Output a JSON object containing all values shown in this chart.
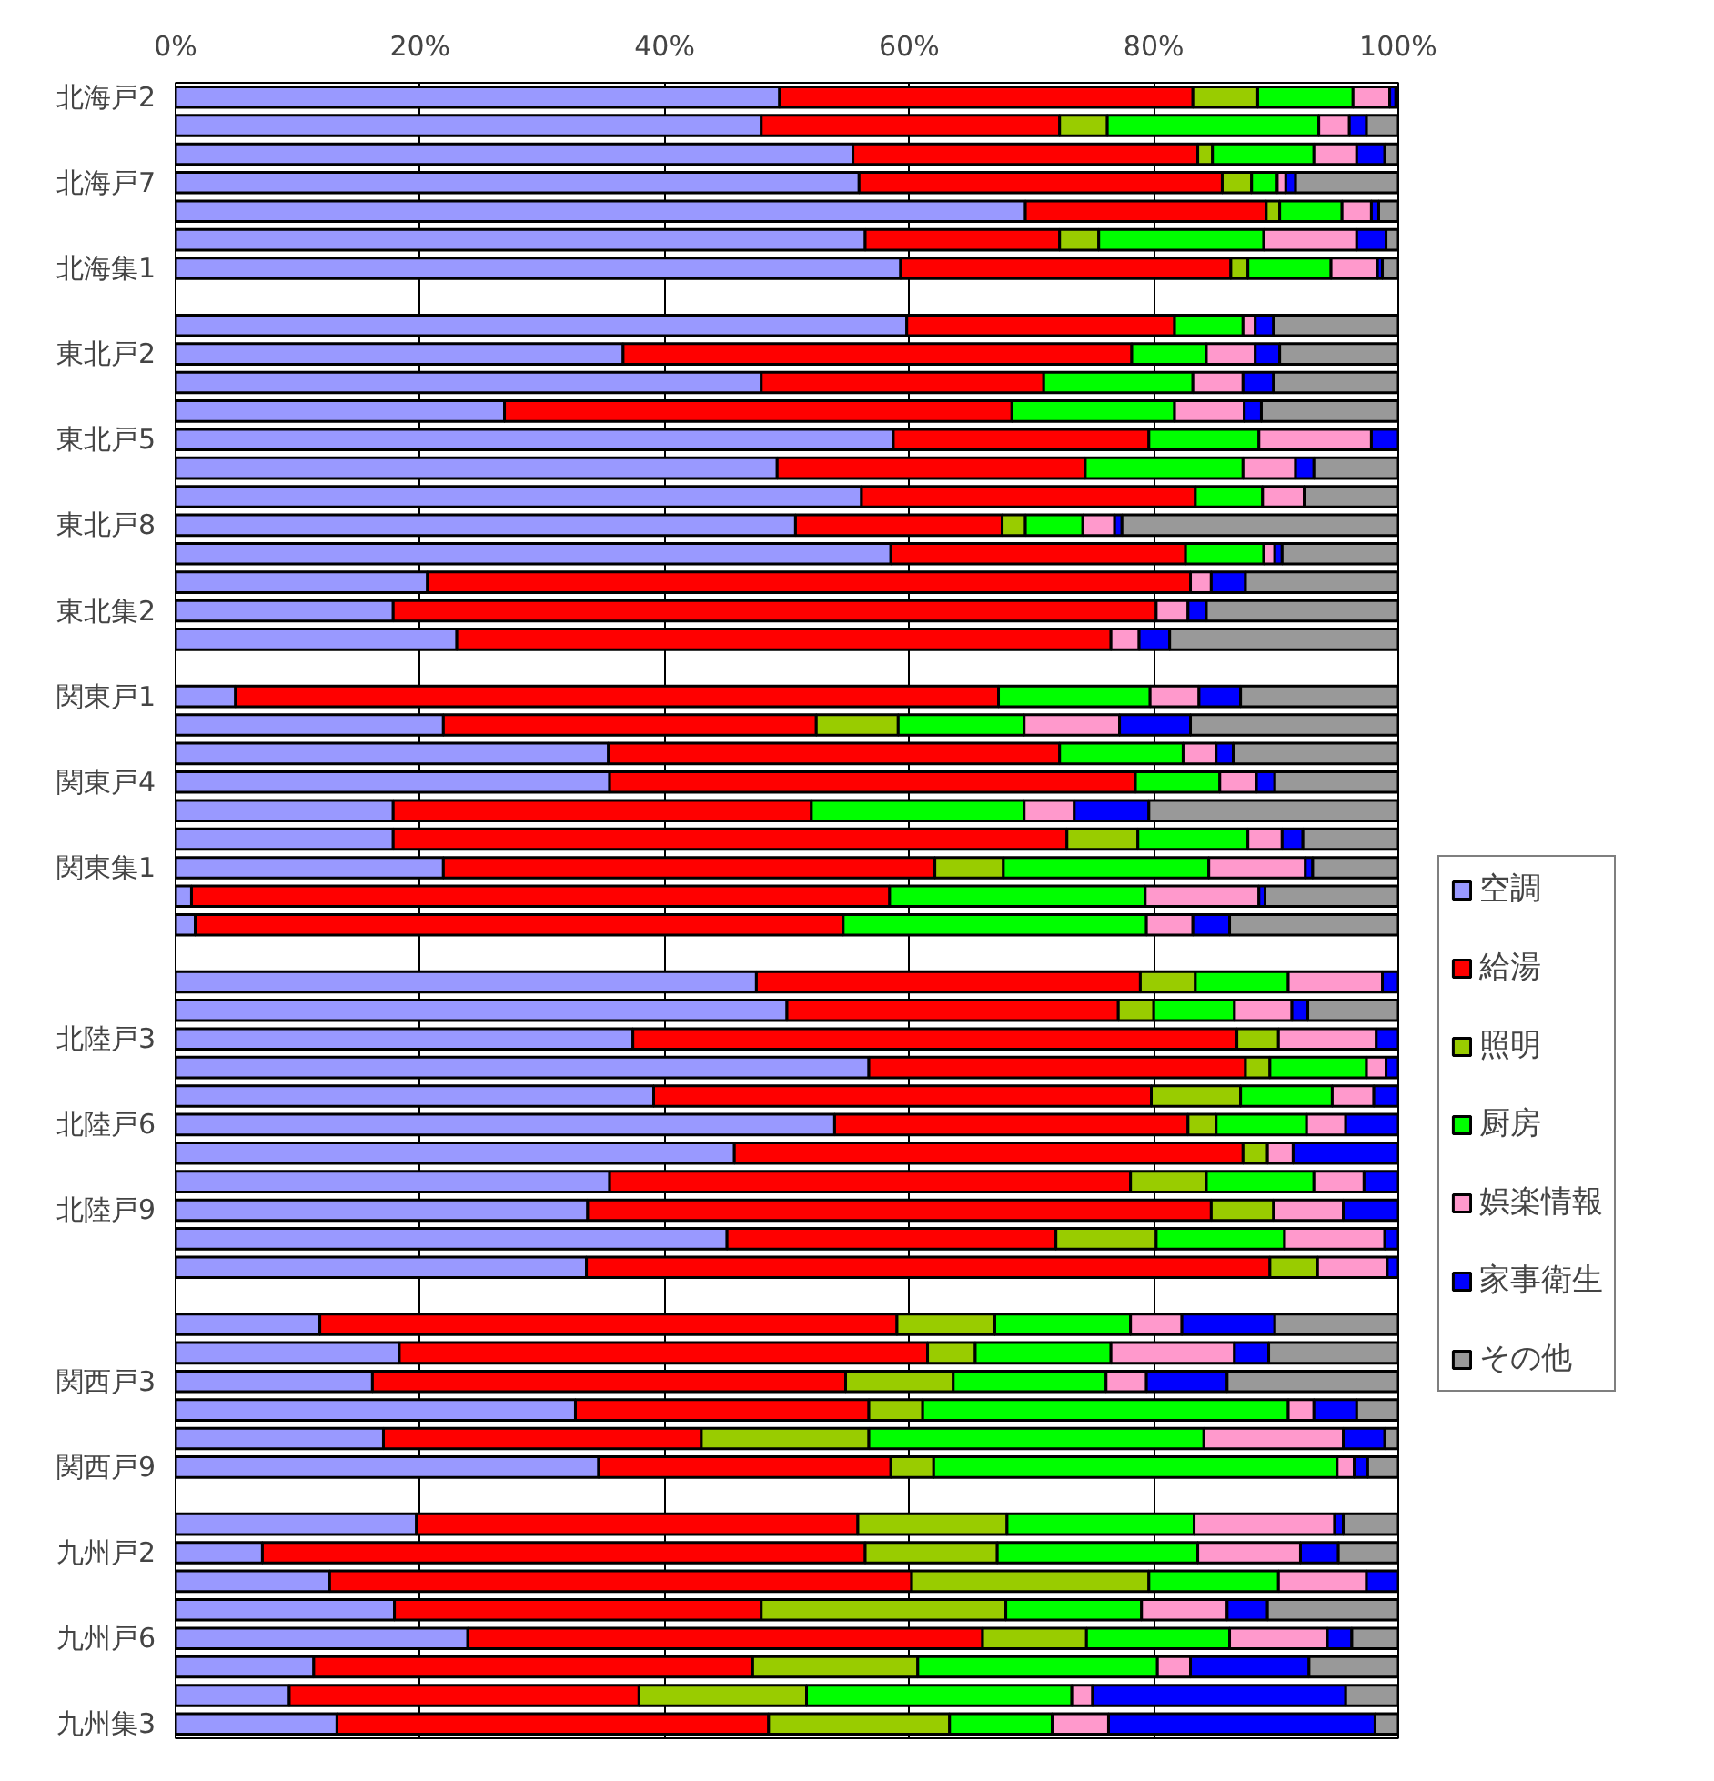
{
  "chart_data": {
    "type": "bar",
    "orientation": "horizontal",
    "stacked": true,
    "categories": [
      "北海戸2",
      null,
      null,
      "北海戸7",
      null,
      null,
      "北海集1",
      null,
      null,
      "東北戸2",
      null,
      null,
      "東北戸5",
      null,
      null,
      "東北戸8",
      null,
      null,
      "東北集2",
      null,
      null,
      "関東戸1",
      null,
      null,
      "関東戸4",
      null,
      null,
      "関東集1",
      null,
      null,
      null,
      null,
      null,
      "北陸戸3",
      null,
      null,
      "北陸戸6",
      null,
      null,
      "北陸戸9",
      null,
      null,
      null,
      null,
      null,
      "関西戸3",
      null,
      null,
      "関西戸9",
      null,
      null,
      "九州戸2",
      null,
      null,
      "九州戸6",
      null,
      null,
      "九州集3"
    ],
    "series": [
      {
        "name": "空調",
        "color": "#9999ff",
        "values": [
          49.4,
          47.9,
          55.4,
          55.9,
          69.5,
          56.4,
          59.3,
          null,
          59.8,
          36.6,
          47.9,
          26.9,
          58.7,
          49.2,
          56.1,
          50.7,
          58.5,
          20.6,
          17.8,
          23.0,
          null,
          4.9,
          21.9,
          35.4,
          35.5,
          17.8,
          17.8,
          21.9,
          1.3,
          1.6,
          null,
          47.5,
          50.0,
          37.4,
          56.7,
          39.1,
          53.9,
          45.7,
          35.5,
          33.7,
          45.1,
          33.6,
          null,
          11.8,
          18.3,
          16.1,
          32.7,
          17.0,
          34.6,
          null,
          19.7,
          7.1,
          12.6,
          17.9,
          23.9,
          11.3,
          9.3,
          13.2
        ]
      },
      {
        "name": "給湯",
        "color": "#ff0000",
        "values": [
          33.8,
          24.4,
          28.2,
          29.7,
          19.7,
          15.9,
          27.0,
          null,
          21.9,
          41.6,
          23.1,
          41.5,
          20.9,
          25.2,
          27.3,
          16.9,
          24.1,
          62.4,
          62.4,
          53.5,
          null,
          62.4,
          30.5,
          36.9,
          43.0,
          34.2,
          55.1,
          40.2,
          57.1,
          53.0,
          null,
          31.4,
          27.1,
          49.4,
          30.8,
          40.7,
          28.9,
          41.6,
          42.6,
          51.0,
          26.9,
          55.9,
          null,
          47.2,
          43.2,
          38.7,
          24.0,
          26.0,
          23.9,
          null,
          36.1,
          49.3,
          47.6,
          30.0,
          42.1,
          35.9,
          28.6,
          35.3
        ]
      },
      {
        "name": "照明",
        "color": "#99cc00",
        "values": [
          5.3,
          3.9,
          1.2,
          2.4,
          1.1,
          3.2,
          1.4,
          null,
          null,
          null,
          null,
          null,
          null,
          null,
          null,
          1.9,
          null,
          null,
          null,
          null,
          null,
          null,
          6.7,
          null,
          null,
          null,
          5.8,
          5.6,
          null,
          null,
          null,
          4.5,
          2.9,
          3.4,
          2.0,
          7.3,
          2.3,
          2.0,
          6.2,
          5.1,
          8.2,
          3.9,
          null,
          8.0,
          3.9,
          8.8,
          4.4,
          13.7,
          3.5,
          null,
          12.2,
          10.8,
          19.4,
          20.0,
          8.5,
          13.5,
          13.7,
          14.8
        ]
      },
      {
        "name": "厨房",
        "color": "#00ff00",
        "values": [
          7.8,
          17.3,
          8.3,
          2.1,
          5.1,
          13.5,
          6.8,
          null,
          5.6,
          6.1,
          12.2,
          13.3,
          9.0,
          12.9,
          5.5,
          4.7,
          6.4,
          null,
          null,
          null,
          null,
          12.4,
          10.3,
          10.1,
          6.9,
          17.4,
          9.0,
          16.8,
          20.9,
          24.8,
          null,
          7.6,
          6.6,
          null,
          7.9,
          7.5,
          7.4,
          null,
          8.8,
          null,
          10.5,
          null,
          null,
          11.1,
          11.1,
          12.5,
          29.9,
          27.4,
          33.0,
          null,
          15.3,
          16.4,
          10.6,
          11.1,
          11.7,
          19.6,
          21.7,
          8.4
        ]
      },
      {
        "name": "娯楽情報",
        "color": "#ff99cc",
        "values": [
          3.0,
          2.5,
          3.5,
          0.7,
          2.4,
          7.6,
          3.8,
          null,
          1.0,
          4.0,
          4.1,
          5.7,
          9.2,
          4.3,
          3.4,
          2.6,
          0.9,
          1.7,
          2.6,
          2.3,
          null,
          4.0,
          7.8,
          2.7,
          3.0,
          4.1,
          2.8,
          7.9,
          9.3,
          3.8,
          null,
          7.7,
          4.7,
          8.0,
          1.6,
          3.4,
          3.2,
          2.1,
          4.1,
          5.7,
          8.2,
          5.7,
          null,
          4.2,
          10.1,
          3.3,
          2.1,
          11.4,
          1.4,
          null,
          11.5,
          8.4,
          7.2,
          7.0,
          8.0,
          2.7,
          1.7,
          4.6
        ]
      },
      {
        "name": "家事衛生",
        "color": "#0000ff",
        "values": [
          0.5,
          1.4,
          2.3,
          0.8,
          0.6,
          2.4,
          0.4,
          null,
          1.5,
          2.0,
          2.5,
          1.4,
          2.2,
          1.5,
          null,
          0.6,
          0.6,
          2.8,
          1.5,
          2.5,
          null,
          3.4,
          5.8,
          1.4,
          1.5,
          6.1,
          1.7,
          0.6,
          0.5,
          3.0,
          null,
          1.3,
          1.3,
          1.9,
          1.0,
          2.0,
          4.3,
          8.6,
          2.8,
          4.5,
          1.1,
          0.9,
          null,
          7.6,
          2.8,
          6.6,
          3.5,
          3.4,
          1.1,
          null,
          0.7,
          3.1,
          2.6,
          3.3,
          2.0,
          9.7,
          20.7,
          21.8
        ]
      },
      {
        "name": "その他",
        "color": "#999999",
        "values": [
          0.2,
          2.6,
          1.1,
          8.4,
          1.6,
          1.0,
          1.3,
          null,
          10.2,
          9.7,
          10.2,
          11.2,
          null,
          6.9,
          7.7,
          22.6,
          9.5,
          12.5,
          15.7,
          18.7,
          null,
          12.9,
          17.0,
          13.5,
          10.1,
          20.4,
          7.8,
          7.0,
          10.9,
          13.8,
          null,
          null,
          7.5,
          null,
          null,
          null,
          null,
          null,
          null,
          null,
          null,
          null,
          null,
          10.1,
          10.6,
          14.0,
          3.4,
          1.1,
          2.5,
          null,
          4.5,
          4.9,
          null,
          10.7,
          3.8,
          7.3,
          4.3,
          1.9
        ]
      }
    ],
    "xlim": [
      0,
      100
    ],
    "xticks": [
      {
        "value": 0,
        "label": "0%"
      },
      {
        "value": 20,
        "label": "20%"
      },
      {
        "value": 40,
        "label": "40%"
      },
      {
        "value": 60,
        "label": "60%"
      },
      {
        "value": 80,
        "label": "80%"
      },
      {
        "value": 100,
        "label": "100%"
      }
    ],
    "grid": "x",
    "legend": "right"
  }
}
